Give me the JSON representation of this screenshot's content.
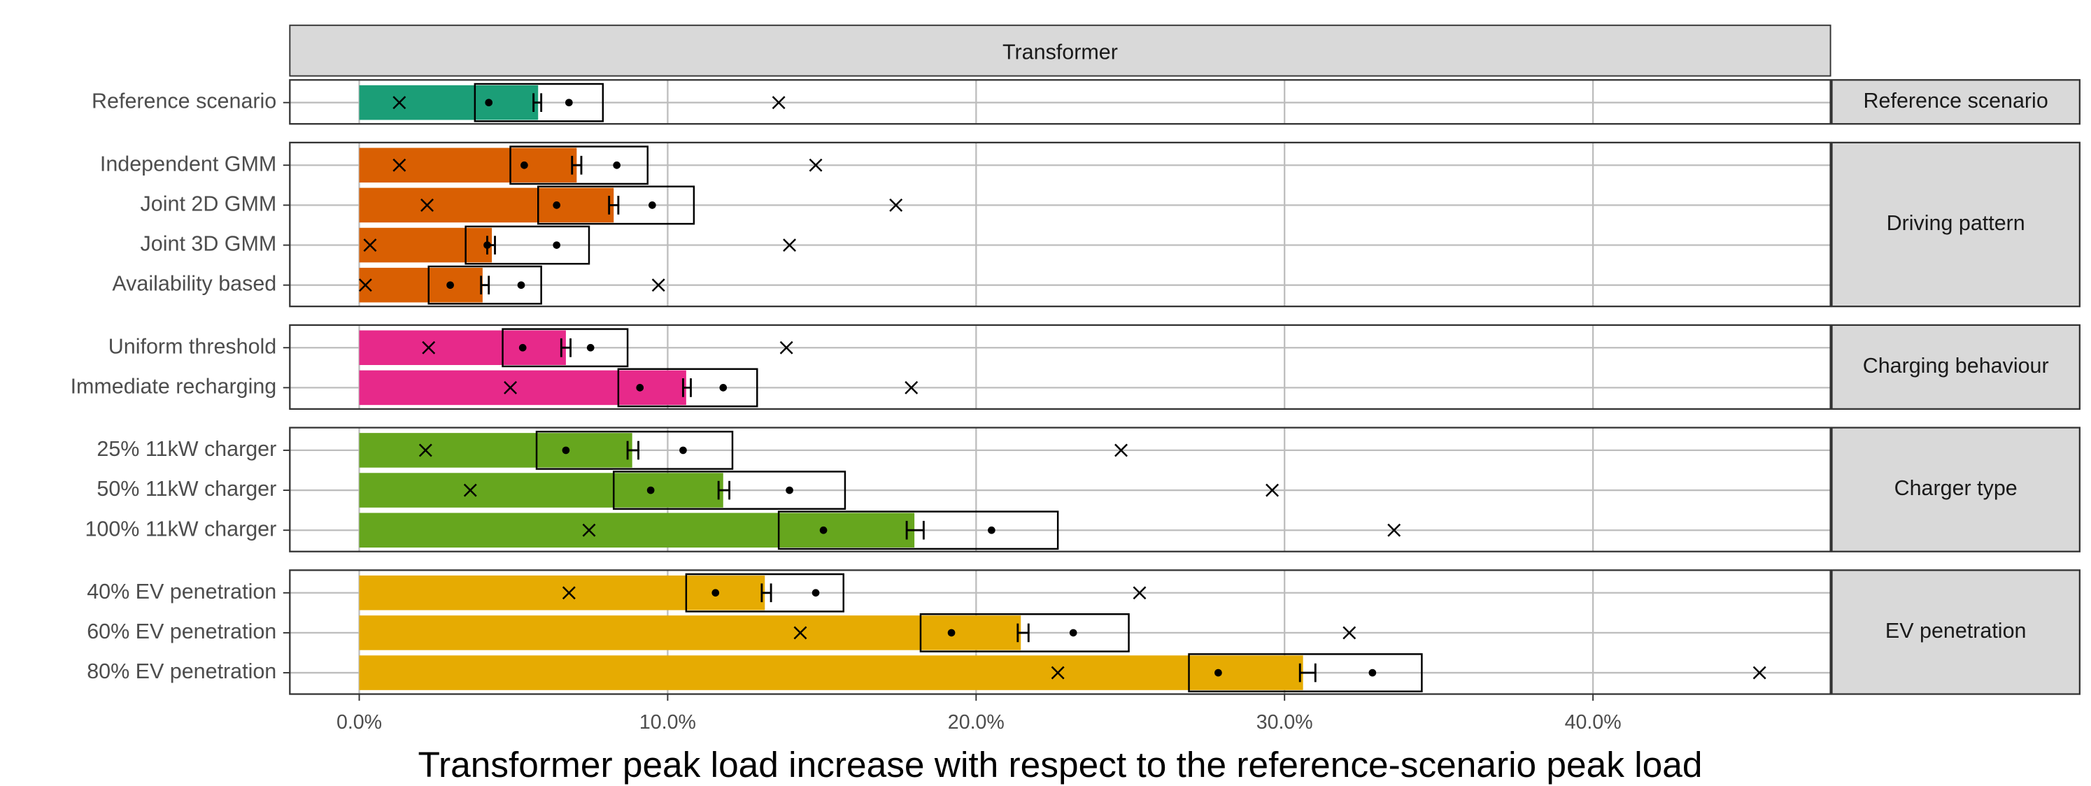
{
  "chart_data": {
    "type": "bar",
    "facet": "Transformer",
    "xlabel": "Transformer peak load increase with respect to the reference-scenario peak load",
    "xlim": [
      -2.25,
      47.7
    ],
    "xticks": [
      {
        "value": 0,
        "label": "0.0%"
      },
      {
        "value": 10,
        "label": "10.0%"
      },
      {
        "value": 20,
        "label": "20.0%"
      },
      {
        "value": 30,
        "label": "30.0%"
      },
      {
        "value": 40,
        "label": "40.0%"
      }
    ],
    "grid": true,
    "panels": [
      {
        "label": "Reference scenario",
        "color": "#1b9e77",
        "rows": [
          {
            "name": "Reference scenario",
            "bar": 5.8,
            "err": [
              5.65,
              5.9
            ],
            "box": [
              3.75,
              7.9
            ],
            "points": [
              4.2,
              6.8
            ],
            "crosses": [
              1.3,
              13.6
            ]
          }
        ]
      },
      {
        "label": "Driving pattern",
        "color": "#d95f02",
        "rows": [
          {
            "name": "Independent GMM",
            "bar": 7.05,
            "err": [
              6.9,
              7.2
            ],
            "box": [
              4.9,
              9.35
            ],
            "points": [
              5.35,
              8.35
            ],
            "crosses": [
              1.3,
              14.8
            ]
          },
          {
            "name": "Joint 2D GMM",
            "bar": 8.25,
            "err": [
              8.1,
              8.4
            ],
            "box": [
              5.8,
              10.85
            ],
            "points": [
              6.4,
              9.5
            ],
            "crosses": [
              2.2,
              17.4
            ]
          },
          {
            "name": "Joint 3D GMM",
            "bar": 4.3,
            "err": [
              4.15,
              4.4
            ],
            "box": [
              3.45,
              7.45
            ],
            "points": [
              4.15,
              6.4
            ],
            "crosses": [
              0.35,
              13.95
            ]
          },
          {
            "name": "Availability based",
            "bar": 4.0,
            "err": [
              3.95,
              4.2
            ],
            "box": [
              2.25,
              5.9
            ],
            "points": [
              2.95,
              5.25
            ],
            "crosses": [
              0.2,
              9.7
            ]
          }
        ]
      },
      {
        "label": "Charging behaviour",
        "color": "#e7298a",
        "rows": [
          {
            "name": "Uniform threshold",
            "bar": 6.7,
            "err": [
              6.55,
              6.85
            ],
            "box": [
              4.65,
              8.7
            ],
            "points": [
              5.3,
              7.5
            ],
            "crosses": [
              2.25,
              13.85
            ]
          },
          {
            "name": "Immediate recharging",
            "bar": 10.6,
            "err": [
              10.5,
              10.75
            ],
            "box": [
              8.4,
              12.9
            ],
            "points": [
              9.1,
              11.8
            ],
            "crosses": [
              4.9,
              17.9
            ]
          }
        ]
      },
      {
        "label": "Charger type",
        "color": "#66a61e",
        "rows": [
          {
            "name": "25% 11kW charger",
            "bar": 8.85,
            "err": [
              8.7,
              9.05
            ],
            "box": [
              5.75,
              12.1
            ],
            "points": [
              6.7,
              10.5
            ],
            "crosses": [
              2.15,
              24.7
            ]
          },
          {
            "name": "50% 11kW charger",
            "bar": 11.8,
            "err": [
              11.65,
              12.0
            ],
            "box": [
              8.25,
              15.75
            ],
            "points": [
              9.45,
              13.95
            ],
            "crosses": [
              3.6,
              29.6
            ]
          },
          {
            "name": "100% 11kW charger",
            "bar": 18.0,
            "err": [
              17.75,
              18.3
            ],
            "box": [
              13.6,
              22.65
            ],
            "points": [
              15.05,
              20.5
            ],
            "crosses": [
              7.45,
              33.55
            ]
          }
        ]
      },
      {
        "label": "EV penetration",
        "color": "#e6ab02",
        "rows": [
          {
            "name": "40% EV penetration",
            "bar": 13.15,
            "err": [
              13.05,
              13.35
            ],
            "box": [
              10.6,
              15.7
            ],
            "points": [
              11.55,
              14.8
            ],
            "crosses": [
              6.8,
              25.3
            ]
          },
          {
            "name": "60% EV penetration",
            "bar": 21.45,
            "err": [
              21.35,
              21.7
            ],
            "box": [
              18.2,
              24.95
            ],
            "points": [
              19.2,
              23.15
            ],
            "crosses": [
              14.3,
              32.1
            ]
          },
          {
            "name": "80% EV penetration",
            "bar": 30.6,
            "err": [
              30.5,
              31.0
            ],
            "box": [
              26.9,
              34.45
            ],
            "points": [
              27.85,
              32.85
            ],
            "crosses": [
              22.65,
              45.4
            ]
          }
        ]
      }
    ]
  }
}
